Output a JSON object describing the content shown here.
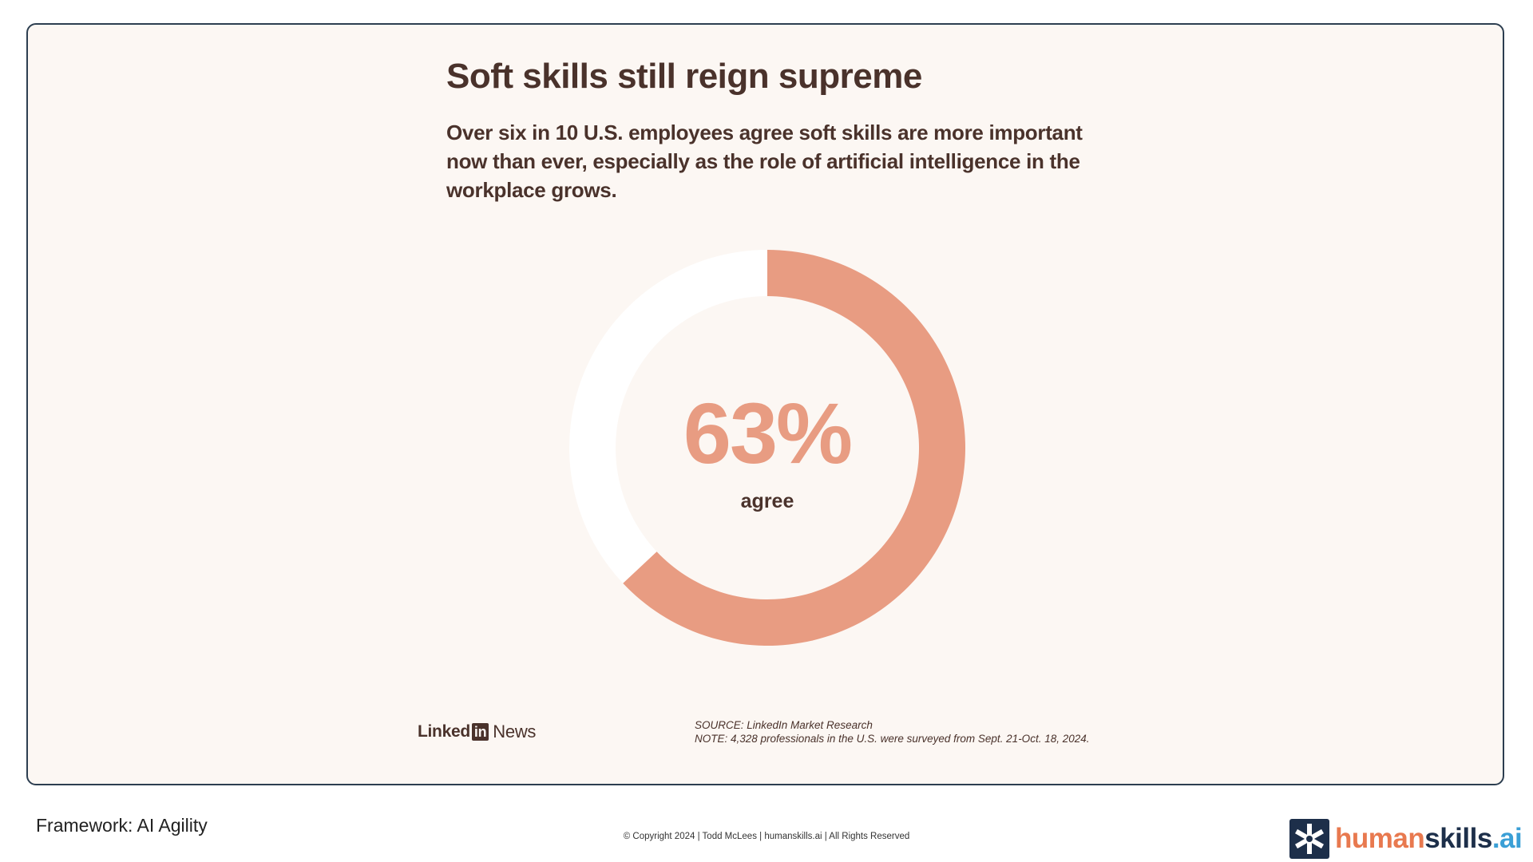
{
  "slide": {
    "title": "Soft skills still reign supreme",
    "subtitle": "Over six in 10 U.S. employees agree soft skills are more important now than ever, especially as the role of artificial intelligence in the workplace grows.",
    "source_logo": {
      "left_text": "Linked",
      "box_text": "in",
      "right_text": "News"
    },
    "source_line": "SOURCE: LinkedIn Market Research",
    "note_line": "NOTE: 4,328 professionals in the U.S. were surveyed from Sept. 21-Oct. 18, 2024."
  },
  "chart_data": {
    "type": "pie",
    "title": "Soft skills still reign supreme",
    "center_value": "63%",
    "center_label": "agree",
    "slices": [
      {
        "label": "agree",
        "value": 63,
        "color": "#e89c82"
      },
      {
        "label": "",
        "value": 37,
        "color": "#ffffff"
      }
    ]
  },
  "footer": {
    "framework": "Framework: AI Agility",
    "copyright": "© Copyright 2024  |  Todd McLees  |  humanskills.ai | All Rights Reserved",
    "brand": {
      "part1": "human",
      "part2": "skills",
      "part3": ".ai",
      "colors": {
        "human": "#e8794f",
        "skills": "#1d2f4a",
        "ai": "#3a9fd6"
      }
    }
  }
}
